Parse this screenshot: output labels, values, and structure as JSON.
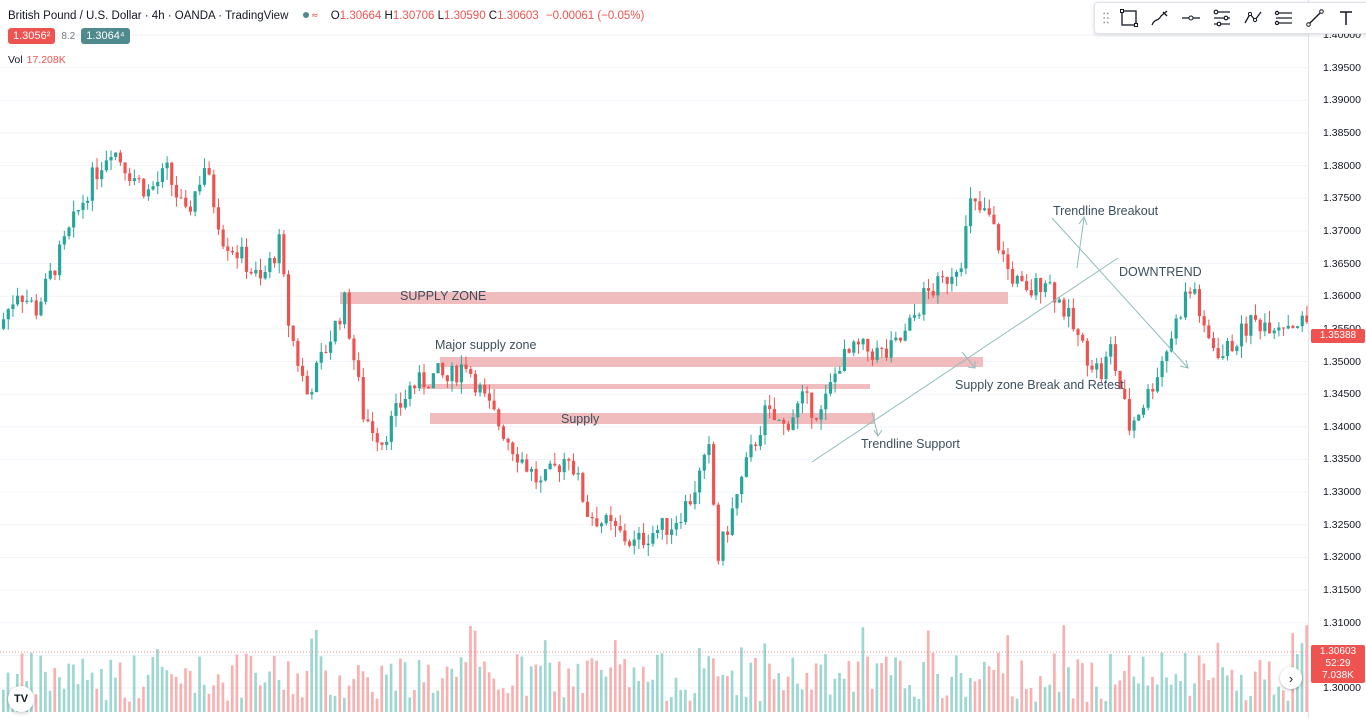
{
  "legend": {
    "title": "British Pound / U.S. Dollar · 4h · OANDA · TradingView",
    "open_label": "O",
    "open": "1.30664",
    "high_label": "H",
    "high": "1.30706",
    "low_label": "L",
    "low": "1.30590",
    "close_label": "C",
    "close": "1.30603",
    "change": "−0.00061 (−0.05%)"
  },
  "quote": {
    "sell": "1.3056²",
    "spread": "8.2",
    "buy": "1.3064⁴"
  },
  "volume": {
    "label": "Vol",
    "value": "17.208K"
  },
  "toolbar": {
    "icons": [
      "drag-handle-icon",
      "rectangle-icon",
      "brush-icon",
      "horizontal-line-icon",
      "pattern-icon",
      "path-icon",
      "long-position-icon",
      "trend-line-icon",
      "text-icon"
    ]
  },
  "price_axis": {
    "labels": [
      "1.40000",
      "1.39500",
      "1.39000",
      "1.38500",
      "1.38000",
      "1.37500",
      "1.37000",
      "1.36500",
      "1.36000",
      "1.35500",
      "1.35000",
      "1.34500",
      "1.34000",
      "1.33500",
      "1.33000",
      "1.32500",
      "1.32000",
      "1.31500",
      "1.31000",
      "1.30500",
      "1.30000"
    ],
    "marker_price": "1.35388",
    "last_price": "1.30603",
    "countdown": "52:29",
    "last_volume": "7.038K"
  },
  "annotations": {
    "supply_zone": "SUPPLY ZONE",
    "major_supply_zone": "Major supply zone",
    "supply": "Supply",
    "trendline_support": "Trendline Support",
    "trendline_breakout": "Trendline Breakout",
    "downtrend": "DOWNTREND",
    "break_retest": "Supply zone Break and Retest"
  },
  "logo": "TV",
  "colors": {
    "up": "#26a69a",
    "down": "#ef5350",
    "zone": "#efb0b2",
    "drawing": "#8fbcbb",
    "marker_tag": "#ef5350",
    "buy_box": "#4e8a8e"
  },
  "chart_data": {
    "type": "candlestick",
    "symbol": "British Pound / U.S. Dollar",
    "interval": "4h",
    "ylim": [
      1.2985,
      1.4025
    ],
    "price_path": [
      [
        0,
        1.355
      ],
      [
        2,
        1.361
      ],
      [
        4,
        1.358
      ],
      [
        7,
        1.368
      ],
      [
        10,
        1.378
      ],
      [
        12,
        1.383
      ],
      [
        14,
        1.379
      ],
      [
        16,
        1.376
      ],
      [
        18,
        1.379
      ],
      [
        20,
        1.372
      ],
      [
        22,
        1.38
      ],
      [
        24,
        1.369
      ],
      [
        26,
        1.366
      ],
      [
        28,
        1.362
      ],
      [
        30,
        1.368
      ],
      [
        31,
        1.356
      ],
      [
        32,
        1.35
      ],
      [
        33,
        1.345
      ],
      [
        35,
        1.352
      ],
      [
        37,
        1.359
      ],
      [
        39,
        1.342
      ],
      [
        41,
        1.338
      ],
      [
        44,
        1.346
      ],
      [
        47,
        1.348
      ],
      [
        48,
        1.347
      ],
      [
        50,
        1.35
      ],
      [
        52,
        1.344
      ],
      [
        55,
        1.337
      ],
      [
        58,
        1.331
      ],
      [
        61,
        1.336
      ],
      [
        63,
        1.327
      ],
      [
        66,
        1.324
      ],
      [
        68,
        1.322
      ],
      [
        70,
        1.324
      ],
      [
        72,
        1.325
      ],
      [
        74,
        1.329
      ],
      [
        76,
        1.336
      ],
      [
        77,
        1.32
      ],
      [
        80,
        1.334
      ],
      [
        82,
        1.342
      ],
      [
        84,
        1.34
      ],
      [
        86,
        1.344
      ],
      [
        88,
        1.342
      ],
      [
        90,
        1.35
      ],
      [
        92,
        1.352
      ],
      [
        95,
        1.351
      ],
      [
        97,
        1.354
      ],
      [
        99,
        1.36
      ],
      [
        101,
        1.362
      ],
      [
        103,
        1.366
      ],
      [
        104,
        1.374
      ],
      [
        106,
        1.372
      ],
      [
        108,
        1.364
      ],
      [
        110,
        1.36
      ],
      [
        112,
        1.363
      ],
      [
        114,
        1.358
      ],
      [
        116,
        1.352
      ],
      [
        118,
        1.348
      ],
      [
        119,
        1.352
      ],
      [
        121,
        1.34
      ],
      [
        123,
        1.345
      ],
      [
        125,
        1.352
      ],
      [
        127,
        1.36
      ],
      [
        128,
        1.361
      ],
      [
        129,
        1.354
      ],
      [
        131,
        1.351
      ],
      [
        134,
        1.356
      ]
    ],
    "zones": [
      {
        "label": "SUPPLY ZONE",
        "top": 1.3612,
        "bottom": 1.36
      },
      {
        "label": "Major supply zone",
        "top": 1.3512,
        "bottom": 1.35
      },
      {
        "label": "",
        "top": 1.347,
        "bottom": 1.3465
      },
      {
        "label": "Supply",
        "top": 1.3425,
        "bottom": 1.3412
      }
    ]
  }
}
